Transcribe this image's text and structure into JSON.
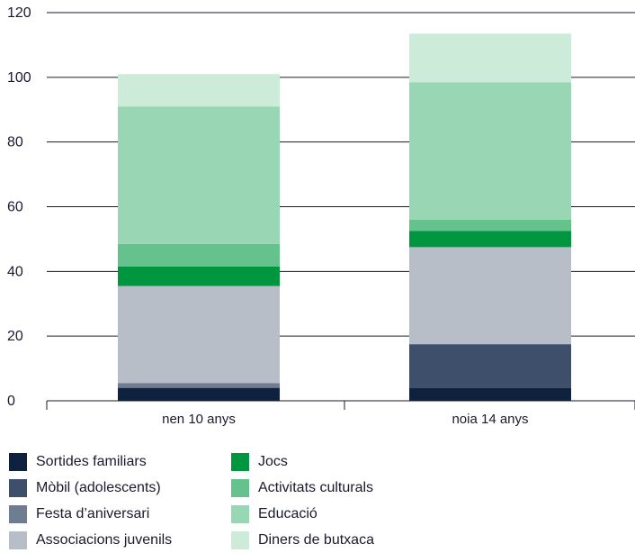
{
  "chart_data": {
    "type": "bar",
    "stacked": true,
    "categories": [
      "nen 10 anys",
      "noia 14 anys"
    ],
    "ylim": [
      0,
      120
    ],
    "yticks": [
      0,
      20,
      40,
      60,
      80,
      100,
      120
    ],
    "grid": true,
    "legend_position": "bottom",
    "series": [
      {
        "name": "Sortides familiars",
        "color": "#0e2240",
        "values": [
          4,
          4
        ]
      },
      {
        "name": "Mòbil (adolescents)",
        "color": "#3d4f6b",
        "values": [
          0,
          13.5
        ]
      },
      {
        "name": "Festa d’aniversari",
        "color": "#6e7d91",
        "values": [
          1.5,
          0
        ]
      },
      {
        "name": "Associacions juvenils",
        "color": "#b8bec8",
        "values": [
          30,
          30
        ]
      },
      {
        "name": "Jocs",
        "color": "#009640",
        "values": [
          6,
          5
        ]
      },
      {
        "name": "Activitats culturals",
        "color": "#66c28c",
        "values": [
          7,
          3.5
        ]
      },
      {
        "name": "Educació",
        "color": "#99d6b3",
        "values": [
          42.5,
          42.5
        ]
      },
      {
        "name": "Diners de butxaca",
        "color": "#cdebd9",
        "values": [
          10,
          15
        ]
      }
    ]
  }
}
